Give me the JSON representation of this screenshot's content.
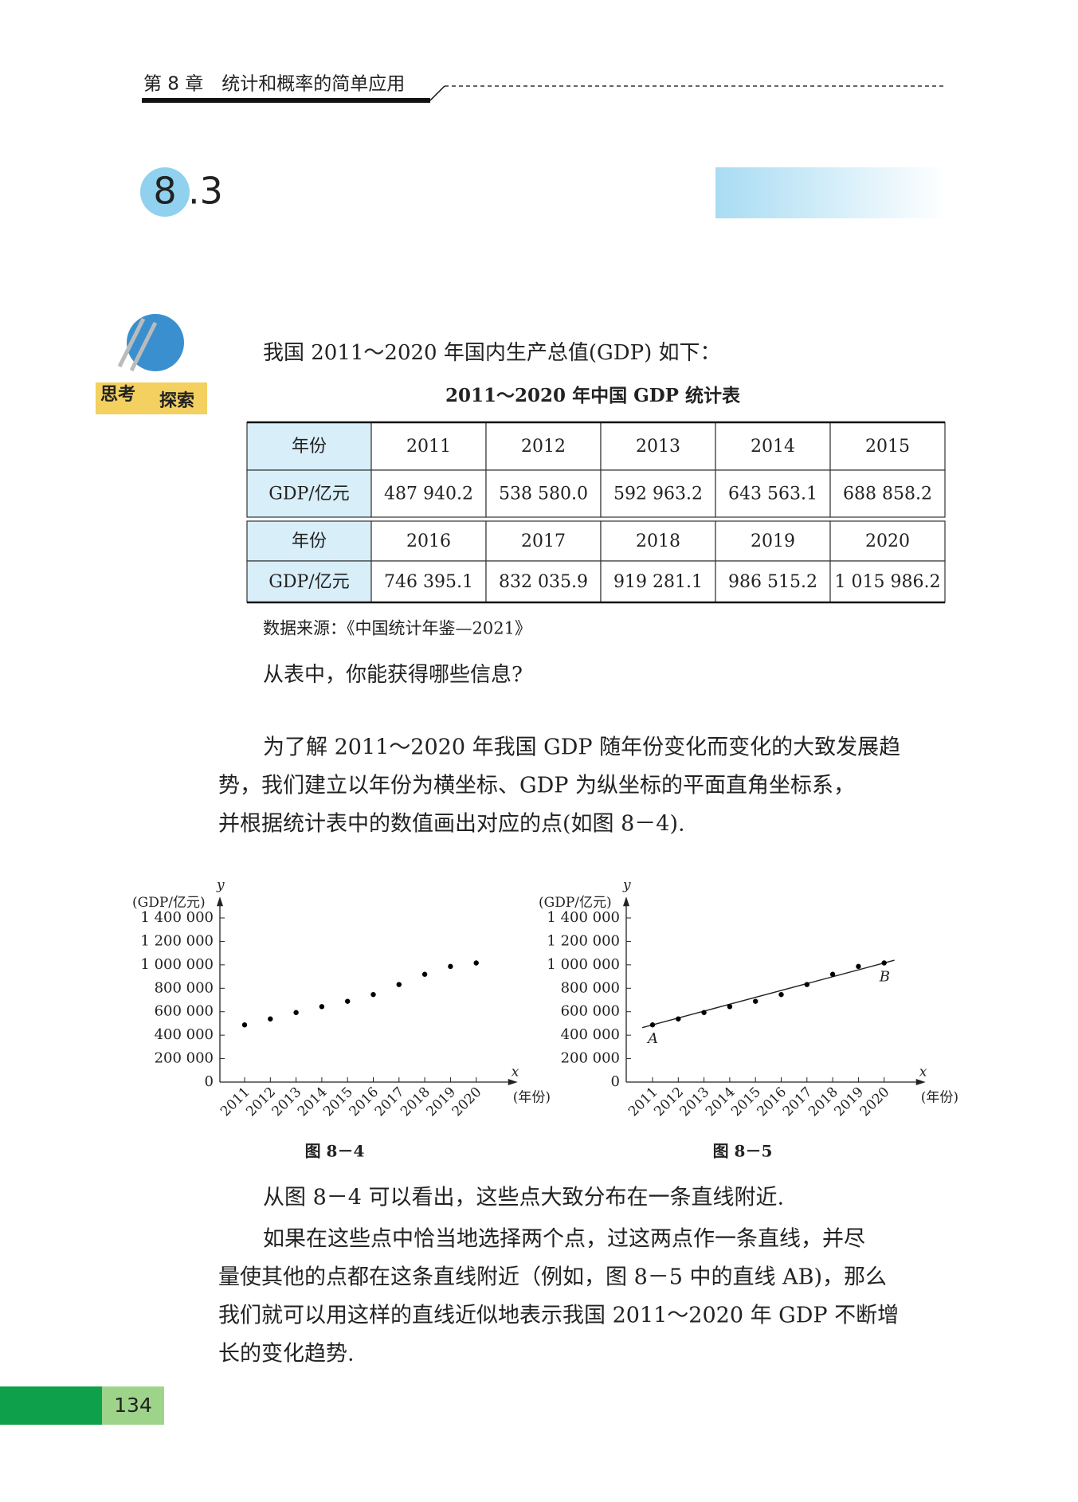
{
  "header": {
    "chapter": "第 8 章　统计和概率的简单应用"
  },
  "section": {
    "number": "8",
    "suffix": ".3"
  },
  "icon": {
    "label_1": "思考",
    "label_2": "探索"
  },
  "intro": "我国 2011～2020 年国内生产总值(GDP) 如下：",
  "table": {
    "title": "2011～2020 年中国 GDP 统计表",
    "rows": [
      [
        "年份",
        "2011",
        "2012",
        "2013",
        "2014",
        "2015"
      ],
      [
        "GDP/亿元",
        "487 940.2",
        "538 580.0",
        "592 963.2",
        "643 563.1",
        "688 858.2"
      ],
      [
        "年份",
        "2016",
        "2017",
        "2018",
        "2019",
        "2020"
      ],
      [
        "GDP/亿元",
        "746 395.1",
        "832 035.9",
        "919 281.1",
        "986 515.2",
        "1 015 986.2"
      ]
    ]
  },
  "source": "数据来源：《中国统计年鉴—2021》",
  "question": "从表中，你能获得哪些信息?",
  "paragraph_1": [
    "为了解 2011～2020 年我国 GDP 随年份变化而变化的大致发展趋",
    "势，我们建立以年份为横坐标、GDP 为纵坐标的平面直角坐标系，",
    "并根据统计表中的数值画出对应的点(如图 8－4)."
  ],
  "chart_data": [
    {
      "type": "scatter",
      "caption": "图 8－4",
      "y_axis_label": "y",
      "y_unit": "(GDP/亿元)",
      "x_axis_label": "x",
      "x_unit": "(年份)",
      "categories": [
        "2011",
        "2012",
        "2013",
        "2014",
        "2015",
        "2016",
        "2017",
        "2018",
        "2019",
        "2020"
      ],
      "values": [
        487940.2,
        538580.0,
        592963.2,
        643563.1,
        688858.2,
        746395.1,
        832035.9,
        919281.1,
        986515.2,
        1015986.2
      ],
      "color": "#000000",
      "ylim": [
        0,
        1500000
      ],
      "yticks": [
        0,
        {
          "value": 200000,
          "label": "200 000"
        },
        {
          "value": 400000,
          "label": "400 000"
        },
        {
          "value": 600000,
          "label": "600 000"
        },
        {
          "value": 800000,
          "label": "800 000"
        },
        {
          "value": 1000000,
          "label": "1 000 000"
        },
        {
          "value": 1200000,
          "label": "1 200 000"
        },
        {
          "value": 1400000,
          "label": "1 400 000"
        }
      ],
      "trend_line": false
    },
    {
      "type": "scatter",
      "caption": "图 8－5",
      "y_axis_label": "y",
      "y_unit": "(GDP/亿元)",
      "x_axis_label": "x",
      "x_unit": "(年份)",
      "categories": [
        "2011",
        "2012",
        "2013",
        "2014",
        "2015",
        "2016",
        "2017",
        "2018",
        "2019",
        "2020"
      ],
      "values": [
        487940.2,
        538580.0,
        592963.2,
        643563.1,
        688858.2,
        746395.1,
        832035.9,
        919281.1,
        986515.2,
        1015986.2
      ],
      "color": "#000000",
      "ylim": [
        0,
        1500000
      ],
      "yticks": [
        0,
        {
          "value": 200000,
          "label": "200 000"
        },
        {
          "value": 400000,
          "label": "400 000"
        },
        {
          "value": 600000,
          "label": "600 000"
        },
        {
          "value": 800000,
          "label": "800 000"
        },
        {
          "value": 1000000,
          "label": "1 000 000"
        },
        {
          "value": 1200000,
          "label": "1 200 000"
        },
        {
          "value": 1400000,
          "label": "1 400 000"
        }
      ],
      "trend_line": true,
      "line_start_label": "A",
      "line_end_label": "B"
    }
  ],
  "paragraph_2": [
    "从图 8－4 可以看出，这些点大致分布在一条直线附近."
  ],
  "paragraph_3": [
    "如果在这些点中恰当地选择两个点，过这两点作一条直线，并尽",
    "量使其他的点都在这条直线附近（例如，图 8－5 中的直线 AB)，那么",
    "我们就可以用这样的直线近似地表示我国 2011～2020 年 GDP 不断增",
    "长的变化趋势."
  ],
  "page_number": "134"
}
